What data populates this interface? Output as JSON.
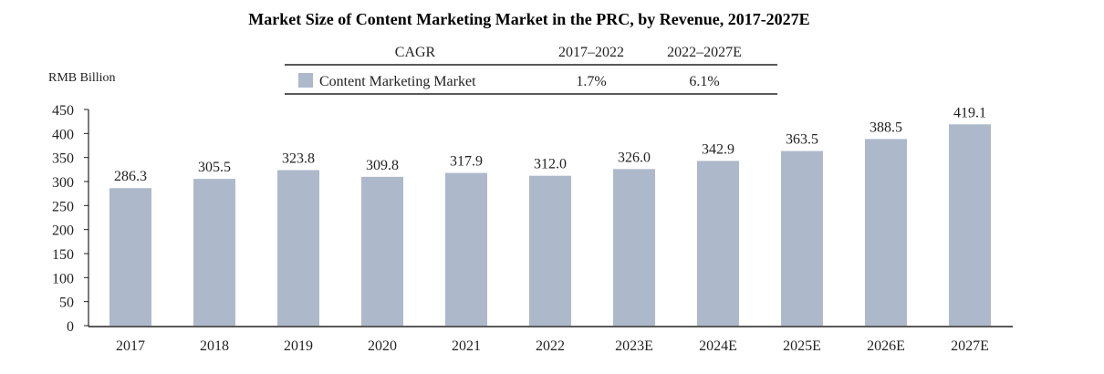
{
  "chart_data": {
    "type": "bar",
    "title": "Market Size of Content Marketing Market in the PRC, by Revenue, 2017-2027E",
    "ylabel": "RMB Billion",
    "xlabel": "",
    "ylim": [
      0,
      450
    ],
    "yticks": [
      0,
      50,
      100,
      150,
      200,
      250,
      300,
      350,
      400,
      450
    ],
    "grid": false,
    "categories": [
      "2017",
      "2018",
      "2019",
      "2020",
      "2021",
      "2022",
      "2023E",
      "2024E",
      "2025E",
      "2026E",
      "2027E"
    ],
    "series": [
      {
        "name": "Content Marketing Market",
        "color": "#adb9cb",
        "values": [
          286.3,
          305.5,
          323.8,
          309.8,
          317.9,
          312.0,
          326.0,
          342.9,
          363.5,
          388.5,
          419.1
        ],
        "labels": [
          "286.3",
          "305.5",
          "323.8",
          "309.8",
          "317.9",
          "312.0",
          "326.0",
          "342.9",
          "363.5",
          "388.5",
          "419.1"
        ]
      }
    ],
    "legend": {
      "placement": "top-center",
      "header": [
        "CAGR",
        "2017–2022",
        "2022–2027E"
      ],
      "rows": [
        {
          "name": "Content Marketing Market",
          "cagr_2017_2022": "1.7%",
          "cagr_2022_2027E": "6.1%"
        }
      ]
    }
  }
}
